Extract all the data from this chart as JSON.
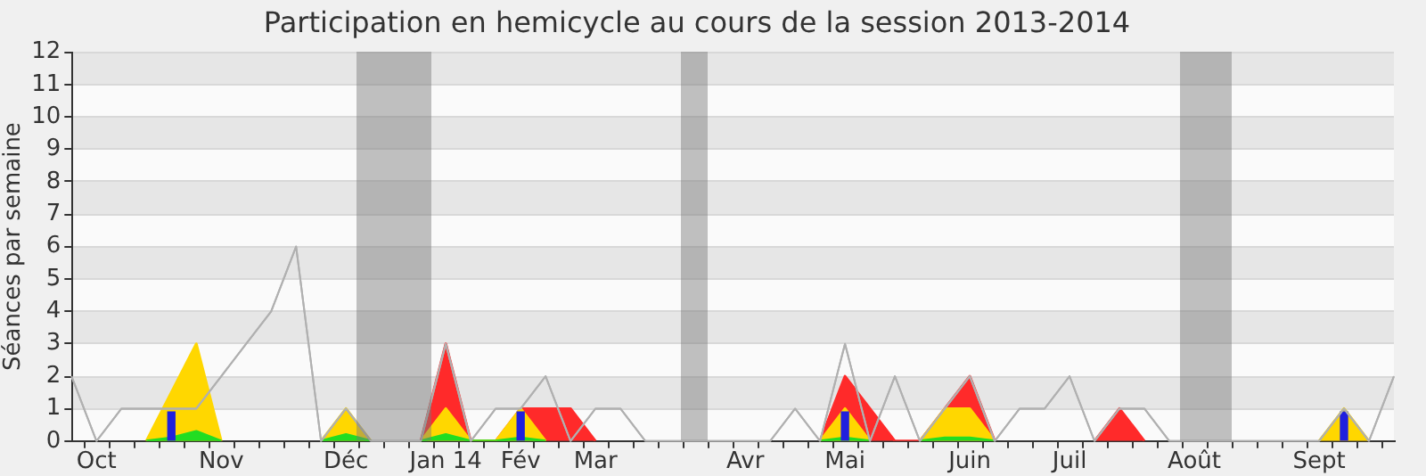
{
  "chart_data": {
    "type": "area",
    "title": "Participation en hemicycle au cours de la session 2013-2014",
    "ylabel": "Séances par semaine",
    "categories": [
      null,
      "Oct",
      null,
      null,
      null,
      null,
      "Nov",
      null,
      null,
      null,
      null,
      "Déc",
      null,
      null,
      null,
      "Jan 14",
      null,
      null,
      "Fév",
      null,
      null,
      "Mar",
      null,
      null,
      null,
      null,
      null,
      "Avr",
      null,
      null,
      null,
      "Mai",
      null,
      null,
      null,
      null,
      "Juin",
      null,
      null,
      null,
      "Juil",
      null,
      null,
      null,
      null,
      "Août",
      null,
      null,
      null,
      null,
      "Sept",
      null,
      null,
      null
    ],
    "ylim": [
      0,
      12
    ],
    "yticks": [
      0,
      1,
      2,
      3,
      4,
      5,
      6,
      7,
      8,
      9,
      10,
      11,
      12
    ],
    "grid": "y",
    "series": [
      {
        "type": "line",
        "color": "#b0b0b0",
        "values": [
          2,
          0,
          1,
          1,
          1,
          1,
          2,
          3,
          4,
          6,
          0,
          1,
          0,
          0,
          0,
          3,
          0,
          1,
          1,
          2,
          0,
          1,
          1,
          0,
          0,
          0,
          0,
          0,
          0,
          1,
          0,
          3,
          0,
          2,
          0,
          1,
          2,
          0,
          1,
          1,
          2,
          0,
          1,
          1,
          0,
          0,
          0,
          0,
          0,
          0,
          0,
          1,
          0,
          2
        ]
      },
      {
        "color": "#ff2a2a",
        "values": [
          null,
          null,
          null,
          null,
          null,
          null,
          null,
          null,
          null,
          null,
          null,
          null,
          null,
          null,
          0,
          3,
          0,
          0,
          1,
          1,
          1,
          0,
          null,
          null,
          null,
          null,
          null,
          null,
          null,
          null,
          0,
          2,
          1,
          0,
          0,
          1,
          2,
          0,
          null,
          null,
          null,
          0,
          1,
          0,
          null,
          null,
          null,
          null,
          null,
          null,
          null,
          null,
          null,
          null
        ]
      },
      {
        "color": "#ffd700",
        "values": [
          null,
          null,
          null,
          0,
          1.5,
          3,
          0,
          null,
          null,
          null,
          0,
          1,
          0,
          null,
          0,
          1,
          0,
          0,
          1,
          0,
          null,
          null,
          null,
          null,
          null,
          null,
          null,
          null,
          null,
          null,
          0,
          1,
          0,
          null,
          0,
          1,
          1,
          0,
          null,
          null,
          null,
          null,
          null,
          null,
          null,
          null,
          null,
          null,
          null,
          null,
          0,
          1,
          0,
          null
        ]
      },
      {
        "color": "#22dd22",
        "values": [
          null,
          null,
          null,
          0,
          0.1,
          0.3,
          0,
          null,
          null,
          null,
          0,
          0.2,
          0,
          null,
          0,
          0.2,
          0,
          0,
          0.1,
          0,
          null,
          null,
          null,
          null,
          null,
          null,
          null,
          null,
          null,
          null,
          0,
          0.1,
          0,
          null,
          0,
          0.1,
          0.1,
          0,
          null,
          null,
          null,
          null,
          null,
          null,
          null,
          null,
          null,
          null,
          null,
          null,
          null,
          null,
          null,
          null
        ]
      },
      {
        "type": "bar",
        "color": "#2020dd",
        "values": [
          null,
          null,
          null,
          null,
          0.9,
          null,
          null,
          null,
          null,
          null,
          null,
          null,
          null,
          null,
          null,
          null,
          null,
          null,
          0.9,
          null,
          null,
          null,
          null,
          null,
          null,
          null,
          null,
          null,
          null,
          null,
          null,
          0.9,
          null,
          null,
          null,
          null,
          null,
          null,
          null,
          null,
          null,
          null,
          null,
          null,
          null,
          null,
          null,
          null,
          null,
          null,
          null,
          0.9,
          null,
          null
        ]
      }
    ]
  }
}
